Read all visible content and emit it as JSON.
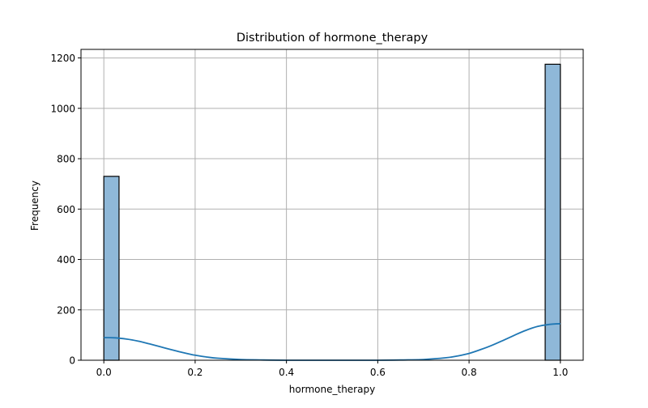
{
  "chart_data": {
    "type": "bar",
    "title": "Distribution of hormone_therapy",
    "xlabel": "hormone_therapy",
    "ylabel": "Frequency",
    "xlim": [
      -0.05,
      1.05
    ],
    "ylim": [
      0,
      1234
    ],
    "xticks": [
      0.0,
      0.2,
      0.4,
      0.6,
      0.8,
      1.0
    ],
    "xtick_labels": [
      "0.0",
      "0.2",
      "0.4",
      "0.6",
      "0.8",
      "1.0"
    ],
    "yticks": [
      0,
      200,
      400,
      600,
      800,
      1000,
      1200
    ],
    "ytick_labels": [
      "0",
      "200",
      "400",
      "600",
      "800",
      "1000",
      "1200"
    ],
    "grid": true,
    "bars": [
      {
        "x0": 0.0,
        "x1": 0.0333,
        "value": 730
      },
      {
        "x0": 0.9667,
        "x1": 1.0,
        "value": 1175
      }
    ],
    "kde": {
      "x": [
        0.0,
        0.025,
        0.05,
        0.075,
        0.1,
        0.125,
        0.15,
        0.175,
        0.2,
        0.225,
        0.25,
        0.3,
        0.35,
        0.4,
        0.5,
        0.6,
        0.65,
        0.7,
        0.75,
        0.775,
        0.8,
        0.825,
        0.85,
        0.875,
        0.9,
        0.925,
        0.95,
        0.975,
        1.0
      ],
      "y": [
        90,
        89,
        84,
        76,
        65,
        53,
        41,
        30,
        20,
        13,
        8,
        3,
        1,
        0,
        0,
        0,
        1,
        3,
        10,
        17,
        27,
        42,
        59,
        79,
        100,
        119,
        134,
        142,
        145
      ]
    },
    "colors": {
      "bar_fill": "#8fb8d8",
      "bar_edge": "#000000",
      "kde_line": "#1f77b4",
      "grid": "#b0b0b0"
    }
  }
}
